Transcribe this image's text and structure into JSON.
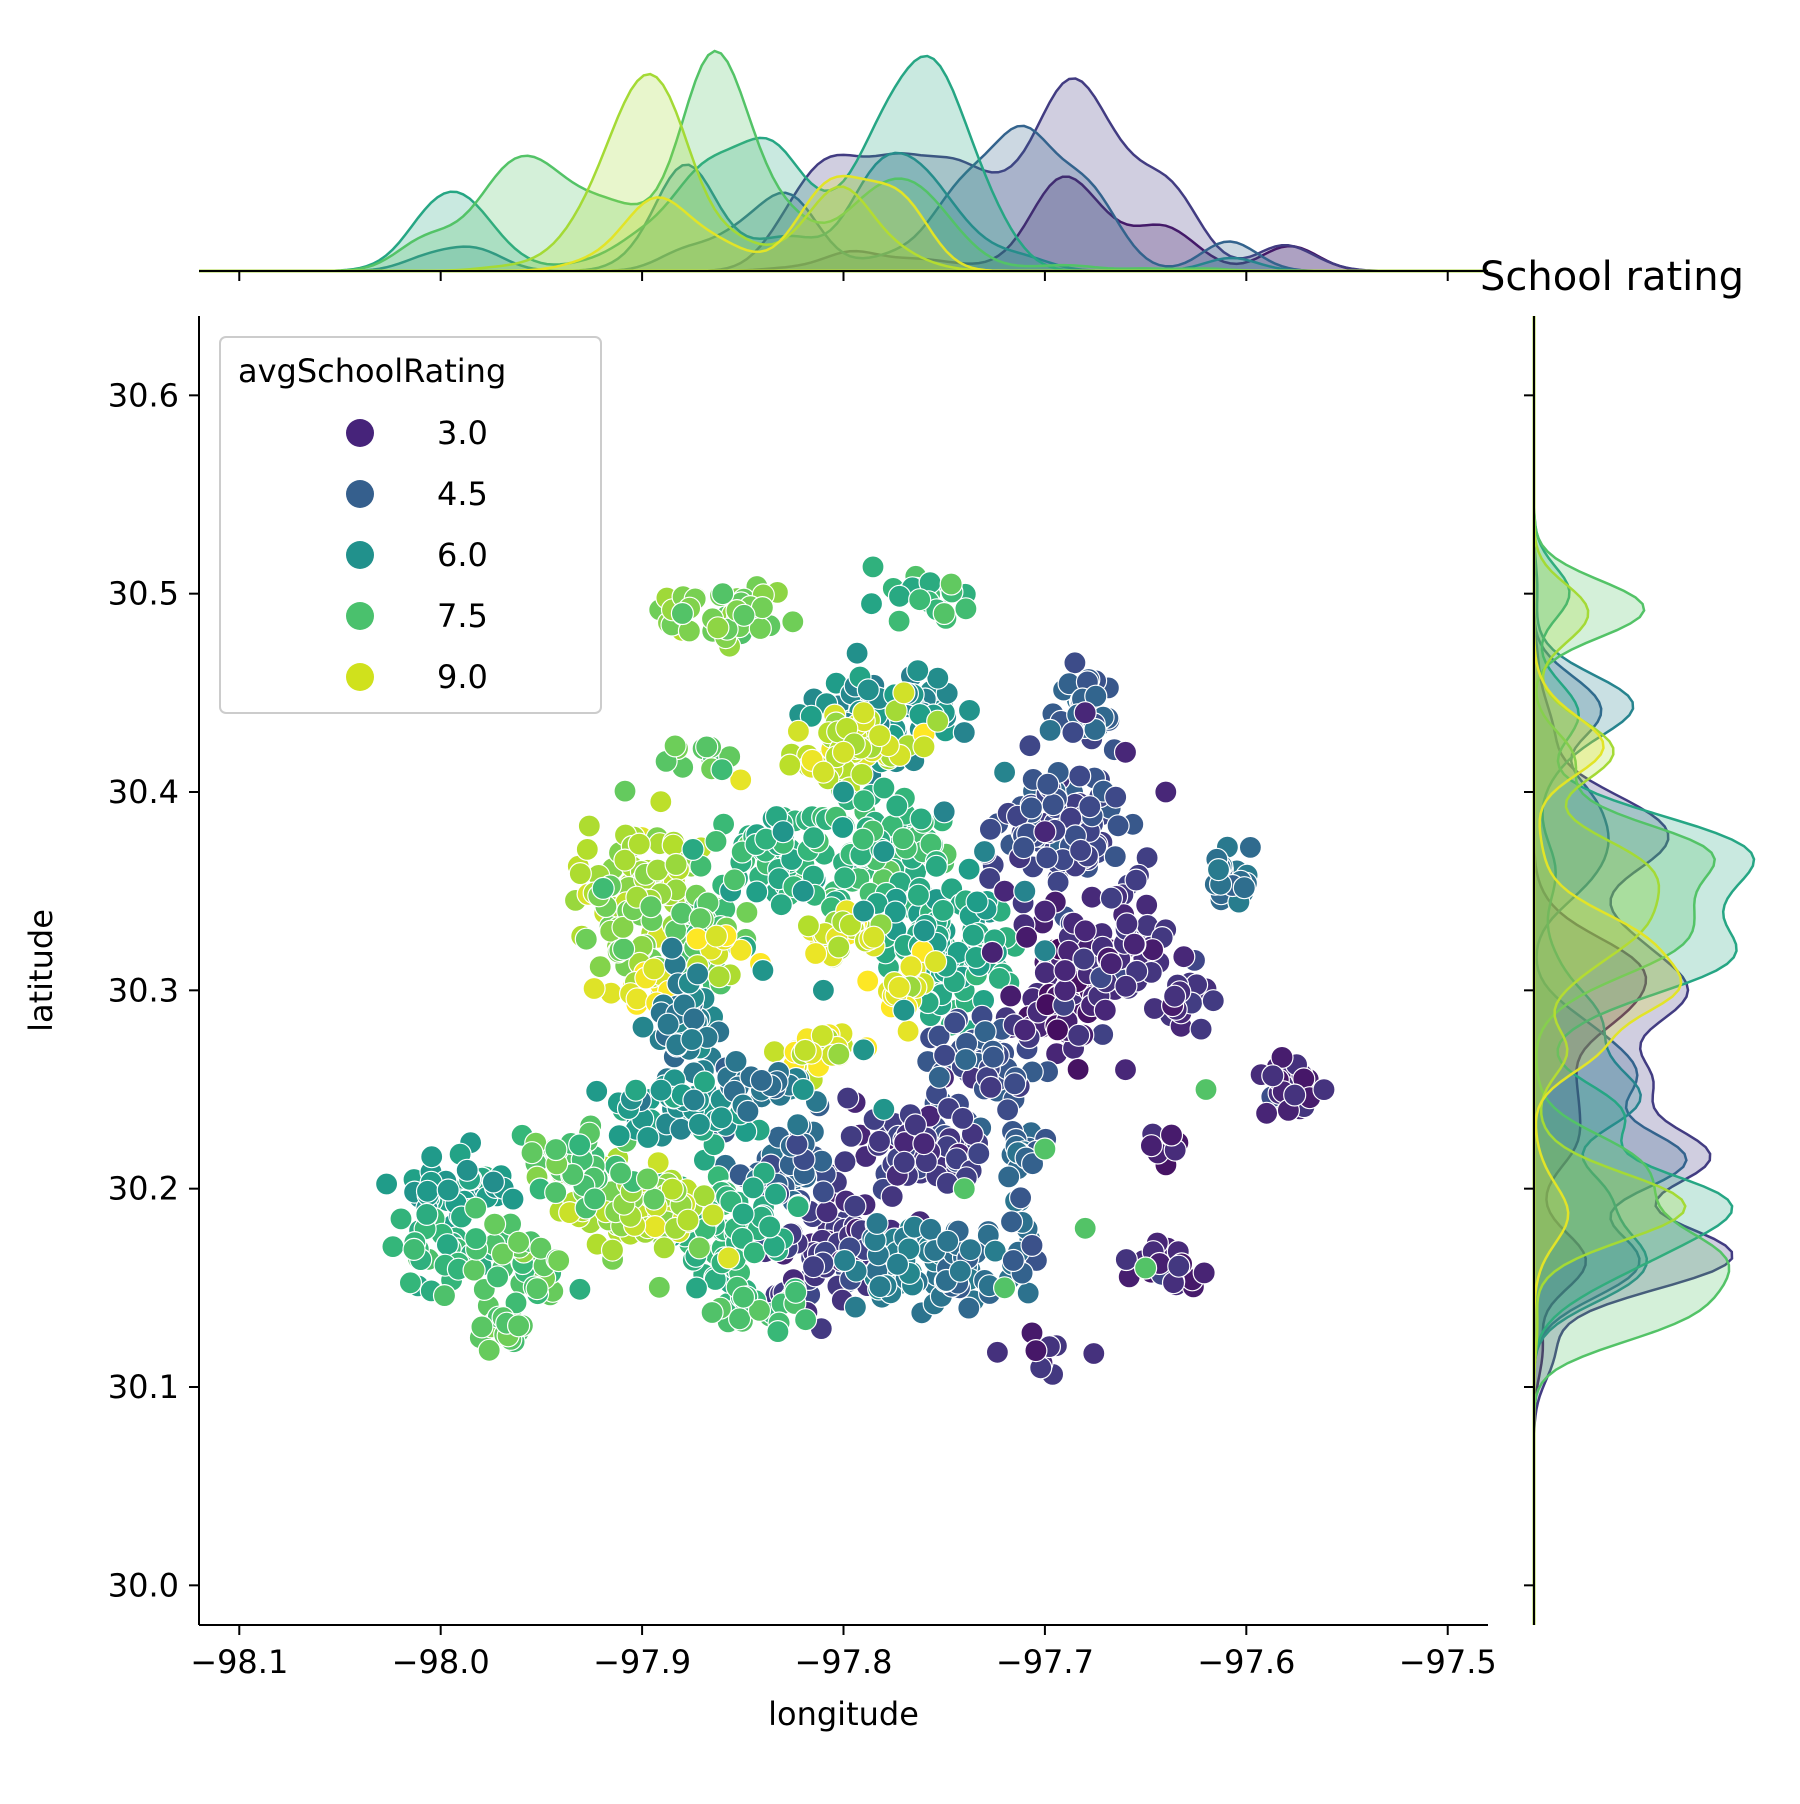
{
  "chart_data": {
    "type": "scatter",
    "title": "School rating",
    "xlabel": "longitude",
    "ylabel": "latitude",
    "xlim": [
      -98.12,
      -97.48
    ],
    "ylim": [
      29.98,
      30.64
    ],
    "x_ticks": [
      -98.1,
      -98.0,
      -97.9,
      -97.8,
      -97.7,
      -97.6,
      -97.5
    ],
    "x_tick_labels": [
      "−98.1",
      "−98.0",
      "−97.9",
      "−97.8",
      "−97.7",
      "−97.6",
      "−97.5"
    ],
    "y_ticks": [
      30.0,
      30.1,
      30.2,
      30.3,
      30.4,
      30.5,
      30.6
    ],
    "y_tick_labels": [
      "30.0",
      "30.1",
      "30.2",
      "30.3",
      "30.4",
      "30.5",
      "30.6"
    ],
    "legend": {
      "title": "avgSchoolRating",
      "placement": "top-left",
      "entries": [
        {
          "label": "3.0",
          "color": "#46237a"
        },
        {
          "label": "4.5",
          "color": "#355f8d"
        },
        {
          "label": "6.0",
          "color": "#21918c"
        },
        {
          "label": "7.5",
          "color": "#4ac16d"
        },
        {
          "label": "9.0",
          "color": "#d0e11c"
        }
      ]
    },
    "color_scale": {
      "min": 2.2,
      "max": 9.5,
      "stops": [
        "#440154",
        "#482878",
        "#3e4989",
        "#31688e",
        "#26828e",
        "#1f9e89",
        "#35b779",
        "#6ece58",
        "#b5de2b",
        "#fde725"
      ]
    },
    "marker_edge_color": "#ffffff",
    "marginal_plots": {
      "top": "kde of longitude by avgSchoolRating",
      "right": "kde of latitude by avgSchoolRating"
    },
    "series": [
      {
        "x": [
          -97.88,
          -97.86,
          -97.75,
          -97.7,
          -97.68,
          -97.65,
          -97.62,
          -97.72,
          -97.74,
          -97.69
        ],
        "y": [
          30.49,
          30.5,
          30.49,
          30.22,
          30.18,
          30.16,
          30.25,
          30.15,
          30.2,
          30.3
        ],
        "rating": 7.5
      },
      {
        "x": [
          -97.68,
          -97.7,
          -97.66,
          -97.64,
          -97.72,
          -97.68,
          -97.69,
          -97.71,
          -97.7,
          -97.69,
          -97.67,
          -97.66
        ],
        "y": [
          30.44,
          30.38,
          30.42,
          30.4,
          30.35,
          30.33,
          30.3,
          30.28,
          30.34,
          30.31,
          30.29,
          30.26
        ],
        "rating": 3.0
      },
      {
        "x": [
          -97.72,
          -97.74,
          -97.73,
          -97.75,
          -97.71,
          -97.7
        ],
        "y": [
          30.41,
          30.43,
          30.37,
          30.39,
          30.35,
          30.32
        ],
        "rating": 5.5
      },
      {
        "x": [
          -97.79,
          -97.8,
          -97.77,
          -97.81
        ],
        "y": [
          30.44,
          30.42,
          30.45,
          30.41
        ],
        "rating": 9.0
      },
      {
        "x": [
          -97.83,
          -97.8,
          -97.78,
          -97.82,
          -97.79,
          -97.76,
          -97.84,
          -97.81,
          -97.77,
          -97.79,
          -97.82,
          -97.78
        ],
        "y": [
          30.38,
          30.4,
          30.37,
          30.35,
          30.34,
          30.33,
          30.31,
          30.3,
          30.29,
          30.27,
          30.25,
          30.24
        ],
        "rating": 6.0
      }
    ]
  }
}
